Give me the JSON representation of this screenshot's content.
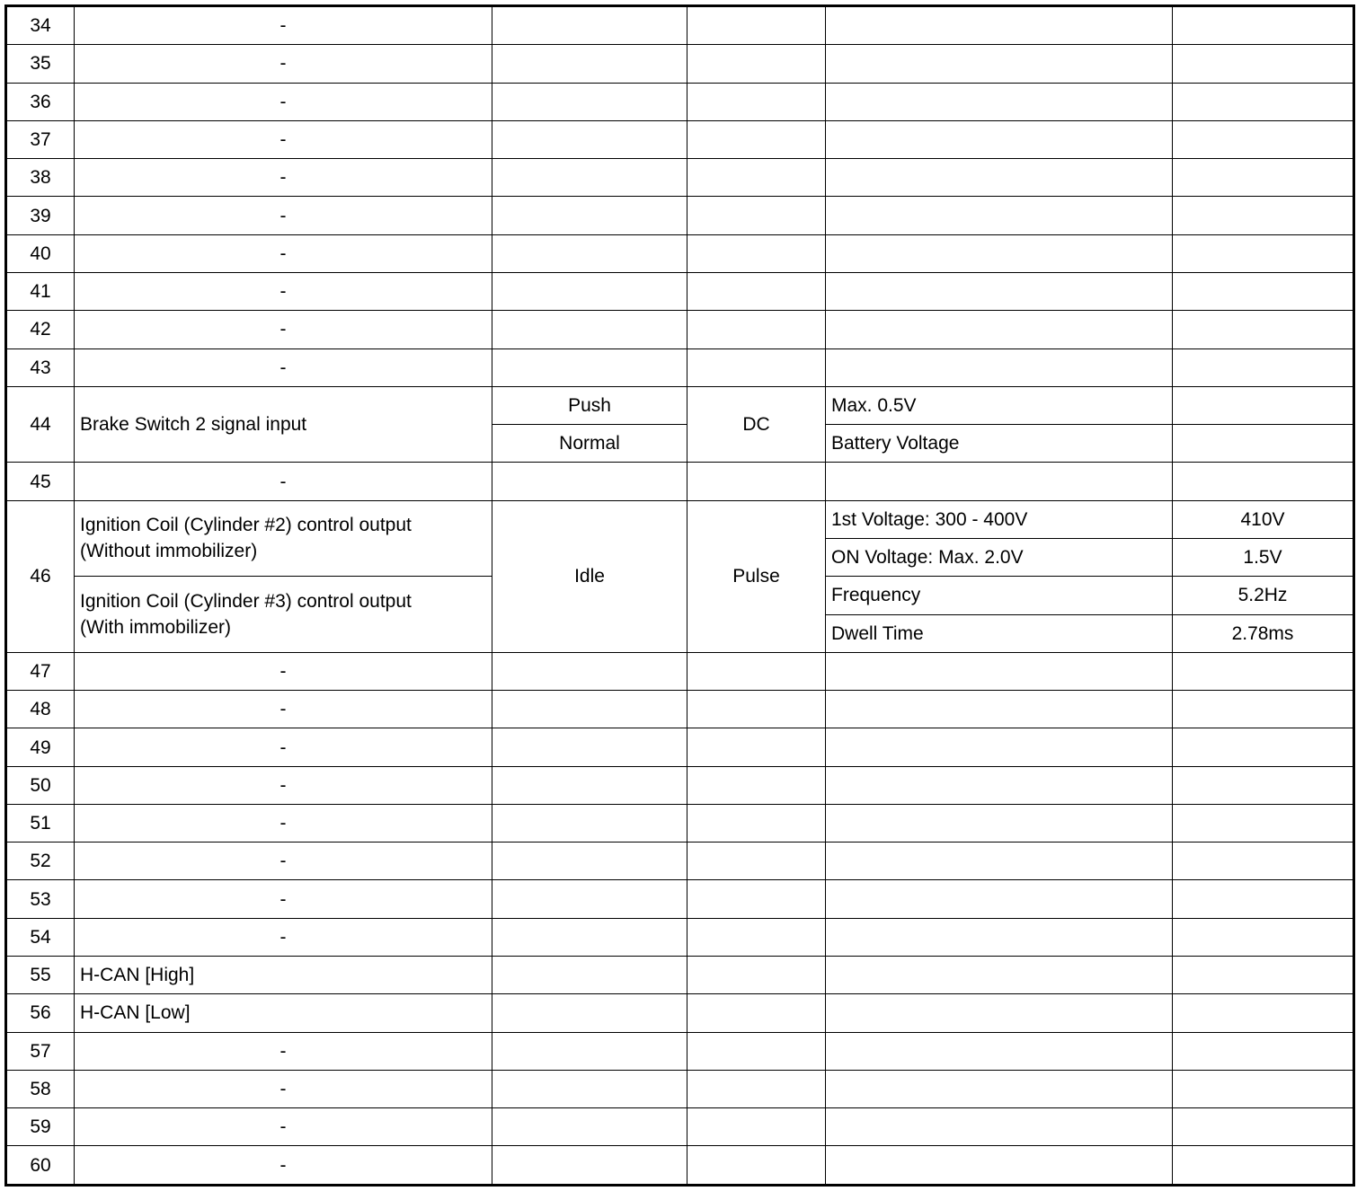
{
  "rows": [
    {
      "pin": "34",
      "desc": "-"
    },
    {
      "pin": "35",
      "desc": "-"
    },
    {
      "pin": "36",
      "desc": "-"
    },
    {
      "pin": "37",
      "desc": "-"
    },
    {
      "pin": "38",
      "desc": "-"
    },
    {
      "pin": "39",
      "desc": "-"
    },
    {
      "pin": "40",
      "desc": "-"
    },
    {
      "pin": "41",
      "desc": "-"
    },
    {
      "pin": "42",
      "desc": "-"
    },
    {
      "pin": "43",
      "desc": "-"
    },
    {
      "pin": "44",
      "desc": "Brake Switch 2 signal input",
      "type": "DC",
      "sub": [
        {
          "condition": "Push",
          "spec": "Max. 0.5V",
          "value": ""
        },
        {
          "condition": "Normal",
          "spec": "Battery Voltage",
          "value": ""
        }
      ]
    },
    {
      "pin": "45",
      "desc": "-"
    },
    {
      "pin": "46",
      "descs": [
        "Ignition Coil (Cylinder #2) control output\n(Without immobilizer)",
        "Ignition Coil (Cylinder #3) control output\n(With immobilizer)"
      ],
      "condition": "Idle",
      "type": "Pulse",
      "sub": [
        {
          "spec": "1st Voltage: 300 - 400V",
          "value": "410V"
        },
        {
          "spec": "ON Voltage: Max. 2.0V",
          "value": "1.5V"
        },
        {
          "spec": "Frequency",
          "value": "5.2Hz"
        },
        {
          "spec": "Dwell Time",
          "value": "2.78ms"
        }
      ]
    },
    {
      "pin": "47",
      "desc": "-"
    },
    {
      "pin": "48",
      "desc": "-"
    },
    {
      "pin": "49",
      "desc": "-"
    },
    {
      "pin": "50",
      "desc": "-"
    },
    {
      "pin": "51",
      "desc": "-"
    },
    {
      "pin": "52",
      "desc": "-"
    },
    {
      "pin": "53",
      "desc": "-"
    },
    {
      "pin": "54",
      "desc": "-"
    },
    {
      "pin": "55",
      "desc": "H-CAN [High]"
    },
    {
      "pin": "56",
      "desc": "H-CAN [Low]"
    },
    {
      "pin": "57",
      "desc": "-"
    },
    {
      "pin": "58",
      "desc": "-"
    },
    {
      "pin": "59",
      "desc": "-"
    },
    {
      "pin": "60",
      "desc": "-"
    }
  ]
}
